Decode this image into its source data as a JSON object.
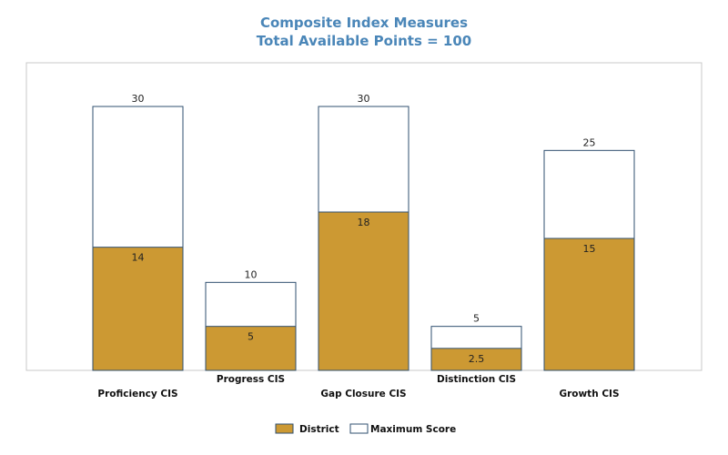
{
  "chart_data": {
    "type": "bar",
    "title": "Composite Index Measures",
    "subtitle": "Total Available Points = 100",
    "categories": [
      "Proficiency CIS",
      "Progress CIS",
      "Gap Closure CIS",
      "Distinction CIS",
      "Growth CIS"
    ],
    "series": [
      {
        "name": "District",
        "values": [
          14,
          5,
          18,
          2.5,
          15
        ],
        "color": "#cc9933",
        "labels": [
          "14",
          "5",
          "18",
          "2.5",
          "15"
        ]
      },
      {
        "name": "Maximum Score",
        "values": [
          30,
          10,
          30,
          5,
          25
        ],
        "color": "#ffffff",
        "labels": [
          "30",
          "10",
          "30",
          "5",
          "25"
        ]
      }
    ],
    "ylim": [
      0,
      30
    ],
    "bar_outline_color": "#2f4f6f",
    "frame_color": "#c8c8c8",
    "grid": false,
    "legend_position": "bottom",
    "xlabel": "",
    "ylabel": ""
  }
}
